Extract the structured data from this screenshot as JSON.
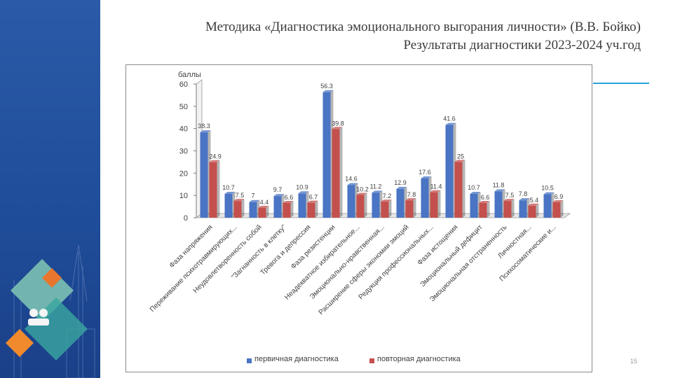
{
  "title": {
    "line1": "Методика «Диагностика эмоционального выгорания личности» (В.В. Бойко)",
    "line2": "Результаты диагностики 2023-2024 уч.год"
  },
  "page_number": "15",
  "colors": {
    "series1": "#4a74c4",
    "series2": "#c4504d",
    "accent": "#2aa3d8",
    "sidebar": "#2454a0"
  },
  "chart_data": {
    "type": "bar",
    "ylabel": "баллы",
    "ylim": [
      0,
      60
    ],
    "yticks": [
      0,
      10,
      20,
      30,
      40,
      50,
      60
    ],
    "grid": false,
    "legend_position": "bottom",
    "categories": [
      "Фаза напряжения",
      "Переживание психотравмирующих...",
      "Неудовлетворенность собой",
      "\"Загнанность в клетку\"",
      "Тревога и депрессия",
      "Фаза резистенции",
      "Неадекватное избирательное...",
      "Эмоционально-нравственная...",
      "Расширение сферы экономии эмоций",
      "Редукция профессиональных...",
      "Фаза истощения",
      "Эмоциональный дефицит",
      "Эмоциональная отстраненность",
      "Личностная...",
      "Психосоматические и..."
    ],
    "series": [
      {
        "name": "первичная диагностика",
        "values": [
          38.3,
          10.7,
          7,
          9.7,
          10.9,
          56.3,
          14.6,
          11.2,
          12.9,
          17.6,
          41.6,
          10.7,
          11.8,
          7.8,
          10.5
        ]
      },
      {
        "name": "повторная диагностика",
        "values": [
          24.9,
          7.5,
          4.4,
          6.6,
          6.7,
          39.8,
          10.2,
          7.2,
          7.8,
          11.4,
          25,
          6.6,
          7.5,
          5.4,
          6.9
        ]
      }
    ]
  }
}
